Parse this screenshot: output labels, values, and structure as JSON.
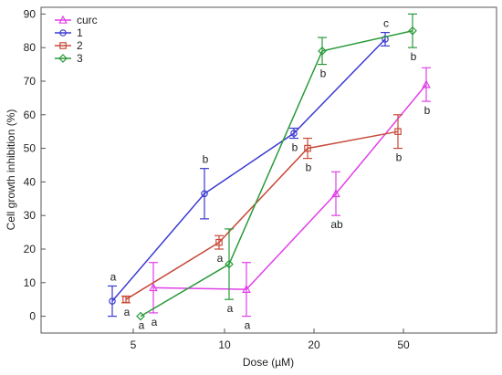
{
  "chart_data": {
    "type": "line",
    "title": "",
    "xlabel": "Dose (µM)",
    "ylabel": "Cell growth inhibition (%)",
    "x_categories": [
      "5",
      "10",
      "20",
      "50"
    ],
    "ylim": [
      -5,
      92
    ],
    "yticks": [
      0,
      10,
      20,
      30,
      40,
      50,
      60,
      70,
      80,
      90
    ],
    "grid": false,
    "legend_position": "top-left",
    "series": [
      {
        "name": "curc",
        "color": "#e040e8",
        "marker": "triangle",
        "points": [
          {
            "x": 5,
            "y": 8.5,
            "err": 7.5,
            "label": "a"
          },
          {
            "x": 10,
            "y": 8,
            "err": 8,
            "label": "a"
          },
          {
            "x": 20,
            "y": 36.5,
            "err": 6.5,
            "label": "ab"
          },
          {
            "x": 50,
            "y": 69,
            "err": 5,
            "label": "b"
          }
        ]
      },
      {
        "name": "1",
        "color": "#3a3ad0",
        "marker": "circle",
        "points": [
          {
            "x": 5,
            "y": 4.5,
            "err": 4.5,
            "label": "a"
          },
          {
            "x": 10,
            "y": 36.5,
            "err": 7.5,
            "label": "b"
          },
          {
            "x": 20,
            "y": 54.5,
            "err": 1.5,
            "label": "b"
          },
          {
            "x": 50,
            "y": 82.5,
            "err": 2,
            "label": "c"
          }
        ]
      },
      {
        "name": "2",
        "color": "#c84a3a",
        "marker": "square",
        "points": [
          {
            "x": 5,
            "y": 5,
            "err": 1,
            "label": "a"
          },
          {
            "x": 10,
            "y": 22,
            "err": 2,
            "label": "a"
          },
          {
            "x": 20,
            "y": 50,
            "err": 3,
            "label": "b"
          },
          {
            "x": 50,
            "y": 55,
            "err": 5,
            "label": "b"
          }
        ]
      },
      {
        "name": "3",
        "color": "#2a9a3a",
        "marker": "diamond",
        "points": [
          {
            "x": 5,
            "y": 0,
            "err": 0,
            "label": "a"
          },
          {
            "x": 10,
            "y": 15.5,
            "err": 10.5,
            "label": "a"
          },
          {
            "x": 20,
            "y": 79,
            "err": 4,
            "label": "b"
          },
          {
            "x": 50,
            "y": 85,
            "err": 5,
            "label": "b"
          }
        ]
      }
    ]
  }
}
